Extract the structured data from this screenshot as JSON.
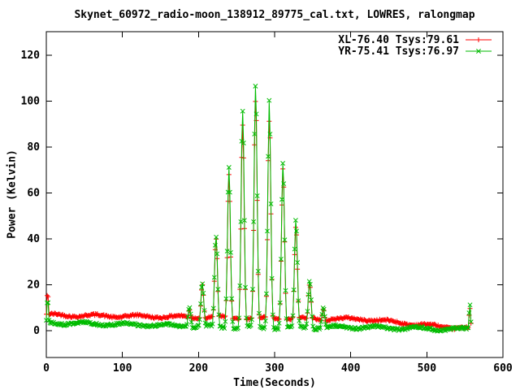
{
  "chart_data": {
    "type": "line-scatter",
    "title": "Skynet_60972_radio-moon_138912_89775_cal.txt, LOWRES, ralongmap",
    "xlabel": "Time(Seconds)",
    "ylabel": "Power (Kelvin)",
    "xticks": [
      0,
      100,
      200,
      300,
      400,
      500,
      600
    ],
    "yticks": [
      0,
      20,
      40,
      60,
      80,
      100,
      120
    ],
    "xlim": [
      0,
      600
    ],
    "ylim": [
      -11.7,
      130.3
    ],
    "grid": false,
    "legend_position": "top-right",
    "frame_color": "#000000",
    "background_color": "#ffffff",
    "series": [
      {
        "name": "XL-76.40 Tsys:79.61",
        "color": "#ff0000",
        "marker": "plus",
        "baseline_points": [
          [
            0,
            6.8
          ],
          [
            80,
            6.4
          ],
          [
            160,
            6.1
          ],
          [
            240,
            5.6
          ],
          [
            320,
            5.3
          ],
          [
            420,
            5.0
          ],
          [
            473,
            3.2
          ],
          [
            516,
            1.8
          ],
          [
            548,
            1.2
          ],
          [
            559,
            1.2
          ]
        ],
        "wiggle": {
          "amplitude": 0.55,
          "period": 55,
          "phase": 0.5
        },
        "noise_amplitude": 0.45,
        "peak_scale": 0.94,
        "start_spike": {
          "t": 1.8,
          "amplitude": 17,
          "sigma": 1.2
        },
        "end_spike": {
          "t": 556.5,
          "amplitude": 10,
          "sigma": 1.0
        },
        "seed": 42
      },
      {
        "name": "YR-75.41 Tsys:76.97",
        "color": "#00bb00",
        "marker": "cross",
        "baseline_points": [
          [
            0,
            3.4
          ],
          [
            80,
            2.9
          ],
          [
            160,
            2.3
          ],
          [
            240,
            1.5
          ],
          [
            320,
            1.2
          ],
          [
            400,
            1.6
          ],
          [
            470,
            1.1
          ],
          [
            520,
            0.7
          ],
          [
            559,
            0.5
          ]
        ],
        "wiggle": {
          "amplitude": 0.6,
          "period": 55,
          "phase": 2.2
        },
        "noise_amplitude": 0.5,
        "peak_scale": 1.0,
        "start_spike": {
          "t": 1.8,
          "amplitude": 14,
          "sigma": 1.2
        },
        "end_spike": {
          "t": 556.5,
          "amplitude": 11.5,
          "sigma": 1.0
        },
        "seed": 137
      }
    ],
    "scan_peaks": [
      {
        "t": 188,
        "amplitude": 10
      },
      {
        "t": 205,
        "amplitude": 21
      },
      {
        "t": 223,
        "amplitude": 42
      },
      {
        "t": 240,
        "amplitude": 71
      },
      {
        "t": 258,
        "amplitude": 97
      },
      {
        "t": 275,
        "amplitude": 109
      },
      {
        "t": 293,
        "amplitude": 99
      },
      {
        "t": 311,
        "amplitude": 74
      },
      {
        "t": 328,
        "amplitude": 48
      },
      {
        "t": 346,
        "amplitude": 22
      },
      {
        "t": 364,
        "amplitude": 10
      }
    ],
    "peak_sigma": 2.0,
    "sample_interval": 1.2,
    "t_range": [
      0,
      559
    ]
  }
}
